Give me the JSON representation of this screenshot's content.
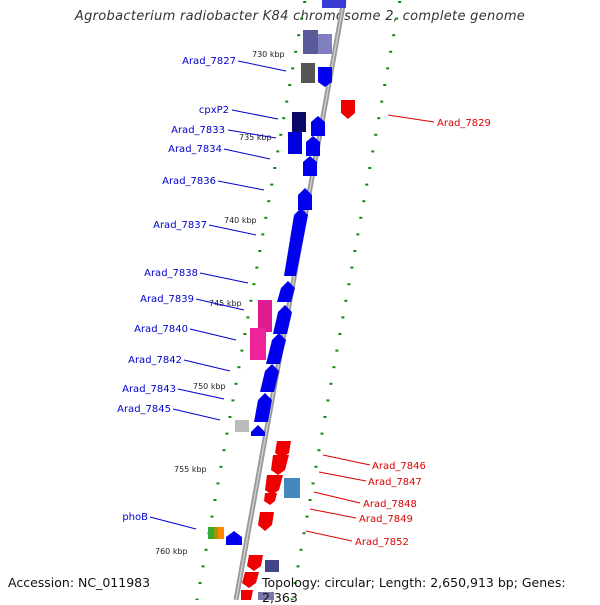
{
  "title": "Agrobacterium radiobacter K84 chromosome 2, complete genome",
  "footer": {
    "accession": "Accession: NC_011983",
    "summary": "Topology: circular; Length: 2,650,913 bp; Genes: 2,363"
  },
  "colors": {
    "plus_strand_label": "#0000cc",
    "minus_strand_label": "#dd0000",
    "tick": "#118811",
    "backbone": "#888888"
  },
  "scale_labels": [
    "730 kbp",
    "735 kbp",
    "740 kbp",
    "745 kbp",
    "750 kbp",
    "755 kbp",
    "760 kbp"
  ],
  "left_gene_labels": [
    "Arad_7827",
    "cpxP2",
    "Arad_7833",
    "Arad_7834",
    "Arad_7836",
    "Arad_7837",
    "Arad_7838",
    "Arad_7839",
    "Arad_7840",
    "Arad_7842",
    "Arad_7843",
    "Arad_7845",
    "phoB"
  ],
  "right_gene_labels": [
    "Arad_7829",
    "Arad_7846",
    "Arad_7847",
    "Arad_7848",
    "Arad_7849",
    "Arad_7852"
  ]
}
